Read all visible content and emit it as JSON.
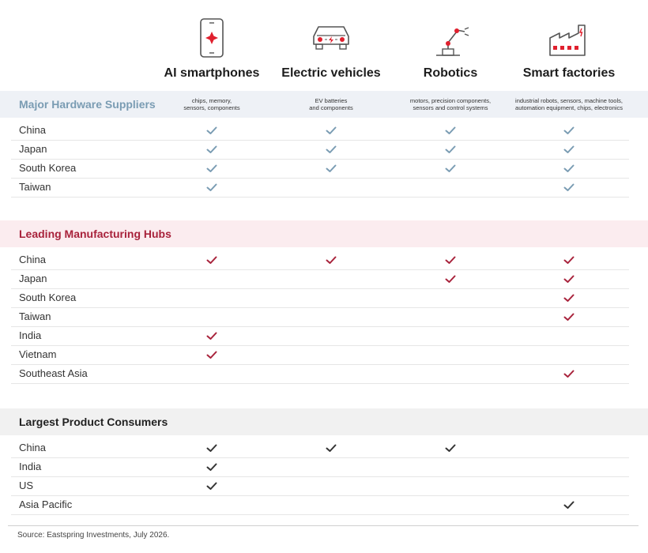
{
  "columns": [
    {
      "title": "AI smartphones",
      "icon": "smartphone-icon"
    },
    {
      "title": "Electric vehicles",
      "icon": "electric-car-icon"
    },
    {
      "title": "Robotics",
      "icon": "robot-arm-icon"
    },
    {
      "title": "Smart factories",
      "icon": "factory-icon"
    }
  ],
  "colors": {
    "suppliers_title": "#7a9cb3",
    "suppliers_band": "#eef1f6",
    "suppliers_check": "#7a9cb3",
    "hubs_title": "#a8223b",
    "hubs_band": "#fbecef",
    "hubs_check": "#a8223b",
    "consumers_title": "#222222",
    "consumers_band": "#f1f1f1",
    "consumers_check": "#333333",
    "icon_red": "#e0202e",
    "icon_gray": "#555555"
  },
  "chart_data": {
    "type": "table",
    "sections": [
      {
        "title": "Major Hardware Suppliers",
        "notes": [
          "chips, memory,\nsensors, components",
          "EV batteries\nand components",
          "motors, precision components,\nsensors and control systems",
          "industrial robots, sensors, machine tools,\nautomation equipment, chips, electronics"
        ],
        "rows": [
          {
            "label": "China",
            "checks": [
              true,
              true,
              true,
              true
            ]
          },
          {
            "label": "Japan",
            "checks": [
              true,
              true,
              true,
              true
            ]
          },
          {
            "label": "South Korea",
            "checks": [
              true,
              true,
              true,
              true
            ]
          },
          {
            "label": "Taiwan",
            "checks": [
              true,
              false,
              false,
              true
            ]
          }
        ]
      },
      {
        "title": "Leading Manufacturing Hubs",
        "notes": [
          "",
          "",
          "",
          ""
        ],
        "rows": [
          {
            "label": "China",
            "checks": [
              true,
              true,
              true,
              true
            ]
          },
          {
            "label": "Japan",
            "checks": [
              false,
              false,
              true,
              true
            ]
          },
          {
            "label": "South Korea",
            "checks": [
              false,
              false,
              false,
              true
            ]
          },
          {
            "label": "Taiwan",
            "checks": [
              false,
              false,
              false,
              true
            ]
          },
          {
            "label": "India",
            "checks": [
              true,
              false,
              false,
              false
            ]
          },
          {
            "label": "Vietnam",
            "checks": [
              true,
              false,
              false,
              false
            ]
          },
          {
            "label": "Southeast Asia",
            "checks": [
              false,
              false,
              false,
              true
            ]
          }
        ]
      },
      {
        "title": "Largest Product Consumers",
        "notes": [
          "",
          "",
          "",
          ""
        ],
        "rows": [
          {
            "label": "China",
            "checks": [
              true,
              true,
              true,
              false
            ]
          },
          {
            "label": "India",
            "checks": [
              true,
              false,
              false,
              false
            ]
          },
          {
            "label": "US",
            "checks": [
              true,
              false,
              false,
              false
            ]
          },
          {
            "label": "Asia Pacific",
            "checks": [
              false,
              false,
              false,
              true
            ]
          }
        ]
      }
    ]
  },
  "footer": {
    "source": "Source: Eastspring Investments, July 2026."
  }
}
